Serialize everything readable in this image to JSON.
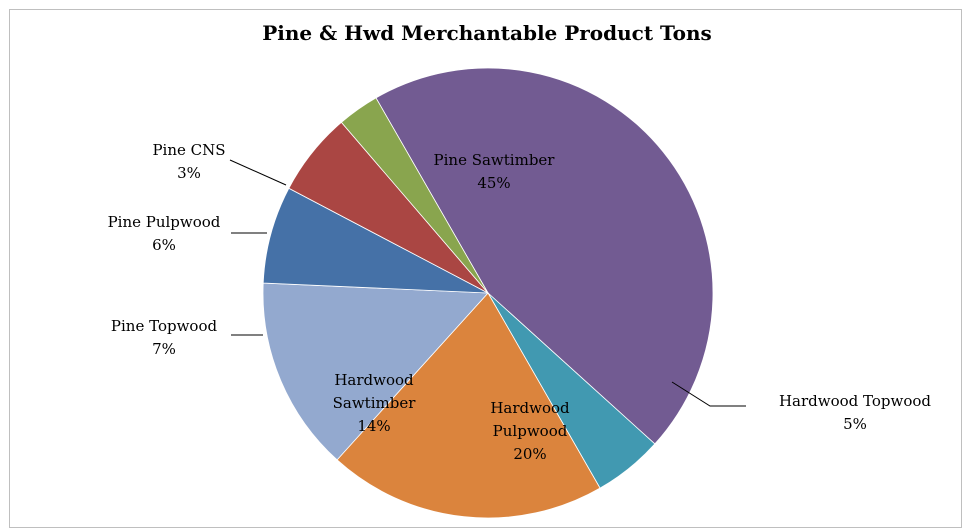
{
  "chart_data": {
    "type": "pie",
    "title": "Pine & Hwd Merchantable Product Tons",
    "slices": [
      {
        "name": "Pine Sawtimber",
        "percent_label": "45%",
        "value": 45,
        "color": "#725b92"
      },
      {
        "name": "Hardwood Topwood",
        "percent_label": "5%",
        "value": 5,
        "color": "#4199b1"
      },
      {
        "name": "Hardwood Pulpwood",
        "percent_label": "20%",
        "value": 20,
        "color": "#db843d"
      },
      {
        "name": "Hardwood Sawtimber",
        "percent_label": "14%",
        "value": 14,
        "color": "#93a9cf"
      },
      {
        "name": "Pine Topwood",
        "percent_label": "7%",
        "value": 7,
        "color": "#4571a7"
      },
      {
        "name": "Pine Pulpwood",
        "percent_label": "6%",
        "value": 6,
        "color": "#aa4643"
      },
      {
        "name": "Pine CNS",
        "percent_label": "3%",
        "value": 3,
        "color": "#89a54e"
      }
    ],
    "legend": "none"
  }
}
